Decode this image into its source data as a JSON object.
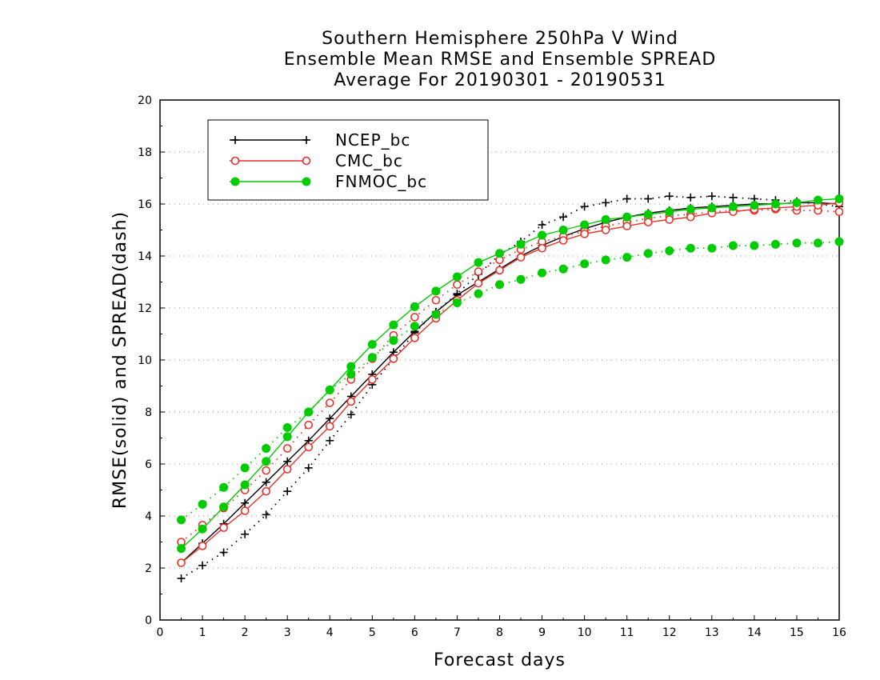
{
  "title_lines": [
    "Southern Hemisphere 250hPa V Wind",
    "Ensemble Mean RMSE and Ensemble SPREAD",
    "Average For 20190301 - 20190531"
  ],
  "chart_data": {
    "type": "line",
    "xlabel": "Forecast days",
    "ylabel": "RMSE(solid) and SPREAD(dash)",
    "xlim": [
      0,
      16
    ],
    "ylim": [
      0,
      20
    ],
    "x_ticks": [
      0,
      1,
      2,
      3,
      4,
      5,
      6,
      7,
      8,
      9,
      10,
      11,
      12,
      13,
      14,
      15,
      16
    ],
    "y_ticks": [
      0,
      2,
      4,
      6,
      8,
      10,
      12,
      14,
      16,
      18,
      20
    ],
    "grid": true,
    "legend_position": "top-left",
    "x": [
      0.5,
      1,
      1.5,
      2,
      2.5,
      3,
      3.5,
      4,
      4.5,
      5,
      5.5,
      6,
      6.5,
      7,
      7.5,
      8,
      8.5,
      9,
      9.5,
      10,
      10.5,
      11,
      11.5,
      12,
      12.5,
      13,
      13.5,
      14,
      14.5,
      15,
      15.5,
      16
    ],
    "series": [
      {
        "name": "NCEP_bc",
        "color": "#000000",
        "marker": "plus",
        "rmse": [
          2.2,
          2.95,
          3.7,
          4.5,
          5.3,
          6.1,
          6.9,
          7.75,
          8.6,
          9.45,
          10.3,
          11.1,
          11.85,
          12.5,
          13.0,
          13.5,
          14.0,
          14.4,
          14.75,
          15.05,
          15.3,
          15.5,
          15.65,
          15.75,
          15.85,
          15.9,
          15.95,
          16.0,
          16.0,
          16.05,
          16.05,
          16.0
        ],
        "spread": [
          1.6,
          2.1,
          2.6,
          3.3,
          4.05,
          4.95,
          5.85,
          6.9,
          7.9,
          9.05,
          10.05,
          11.05,
          11.85,
          12.55,
          13.3,
          14.05,
          14.55,
          15.2,
          15.5,
          15.9,
          16.05,
          16.2,
          16.2,
          16.3,
          16.25,
          16.3,
          16.25,
          16.2,
          16.15,
          16.1,
          16.0,
          15.9
        ]
      },
      {
        "name": "CMC_bc",
        "color": "#e8322a",
        "marker": "open-circle",
        "rmse": [
          2.2,
          2.85,
          3.55,
          4.2,
          4.95,
          5.8,
          6.65,
          7.45,
          8.4,
          9.25,
          10.05,
          10.85,
          11.6,
          12.3,
          12.95,
          13.45,
          13.95,
          14.3,
          14.6,
          14.85,
          15.0,
          15.15,
          15.3,
          15.4,
          15.5,
          15.65,
          15.7,
          15.8,
          15.85,
          15.9,
          15.95,
          16.05
        ],
        "spread": [
          3.0,
          3.65,
          4.3,
          5.0,
          5.75,
          6.6,
          7.5,
          8.35,
          9.25,
          10.05,
          10.95,
          11.65,
          12.3,
          12.9,
          13.4,
          13.85,
          14.25,
          14.55,
          14.75,
          14.95,
          15.15,
          15.3,
          15.45,
          15.55,
          15.6,
          15.7,
          15.75,
          15.75,
          15.8,
          15.75,
          15.75,
          15.7
        ]
      },
      {
        "name": "FNMOC_bc",
        "color": "#00cc00",
        "marker": "filled-circle",
        "rmse": [
          2.75,
          3.5,
          4.35,
          5.2,
          6.1,
          7.05,
          8.0,
          8.85,
          9.75,
          10.6,
          11.35,
          12.05,
          12.65,
          13.2,
          13.75,
          14.1,
          14.45,
          14.8,
          15.0,
          15.2,
          15.4,
          15.5,
          15.6,
          15.7,
          15.8,
          15.85,
          15.9,
          15.95,
          16.0,
          16.05,
          16.15,
          16.2
        ],
        "spread": [
          3.85,
          4.45,
          5.1,
          5.85,
          6.6,
          7.4,
          8.0,
          8.85,
          9.45,
          10.1,
          10.75,
          11.3,
          11.75,
          12.2,
          12.55,
          12.9,
          13.1,
          13.35,
          13.5,
          13.7,
          13.85,
          13.95,
          14.1,
          14.2,
          14.3,
          14.3,
          14.4,
          14.4,
          14.45,
          14.5,
          14.5,
          14.55
        ]
      }
    ]
  }
}
